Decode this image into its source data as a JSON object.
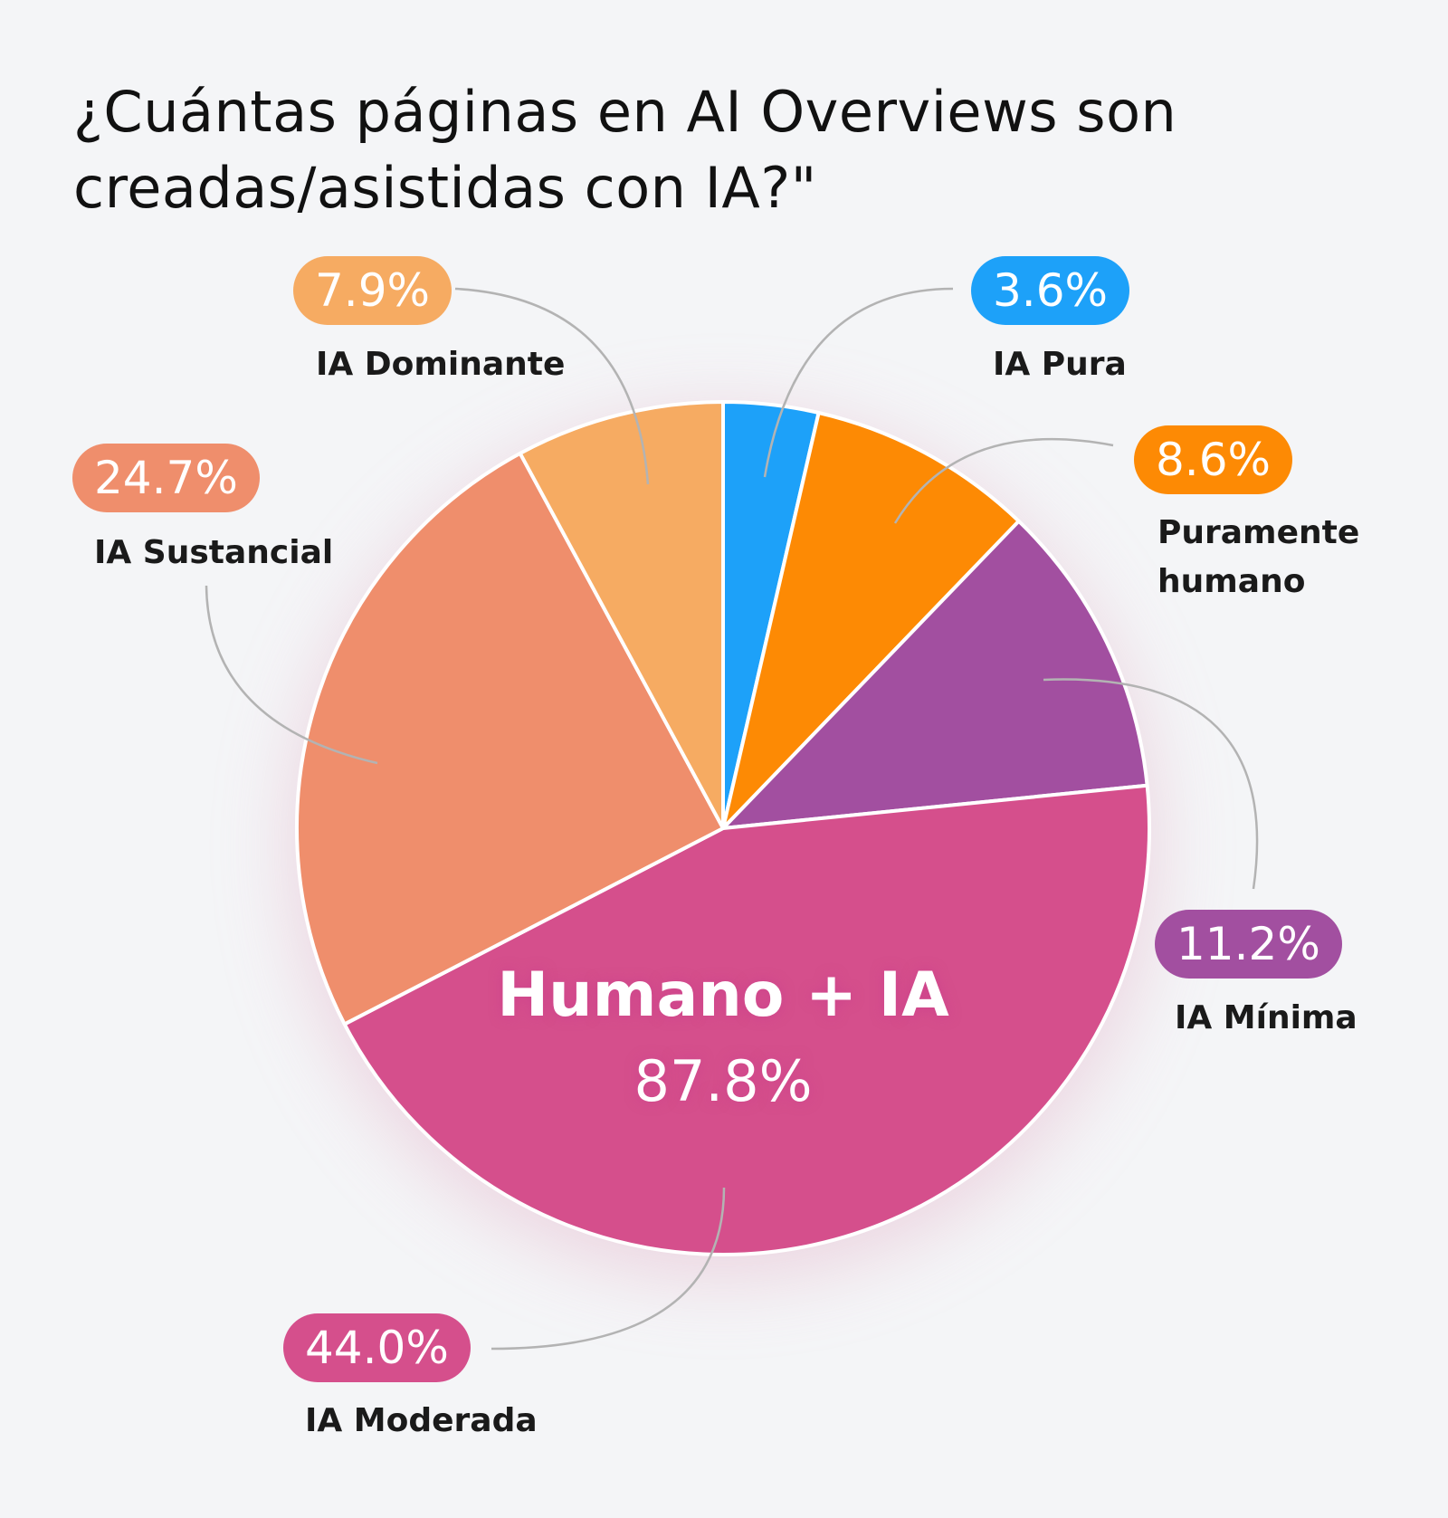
{
  "chart_data": {
    "type": "pie",
    "title": "¿Cuántas páginas en AI Overviews son creadas/asistidas con IA?\"",
    "categories": [
      "IA Pura",
      "Puramente humano",
      "IA Mínima",
      "IA Moderada",
      "IA Sustancial",
      "IA Dominante"
    ],
    "values": [
      3.6,
      8.6,
      11.2,
      44.0,
      24.7,
      7.9
    ],
    "value_labels": [
      "3.6%",
      "8.6%",
      "11.2%",
      "44.0%",
      "24.7%",
      "7.9%"
    ],
    "colors": [
      "#1da1f9",
      "#fd8a04",
      "#a24fa0",
      "#d54f8c",
      "#ef8e6c",
      "#f6ab62"
    ],
    "center": {
      "label": "Humano + IA",
      "value": 87.8,
      "value_label": "87.8%"
    }
  }
}
